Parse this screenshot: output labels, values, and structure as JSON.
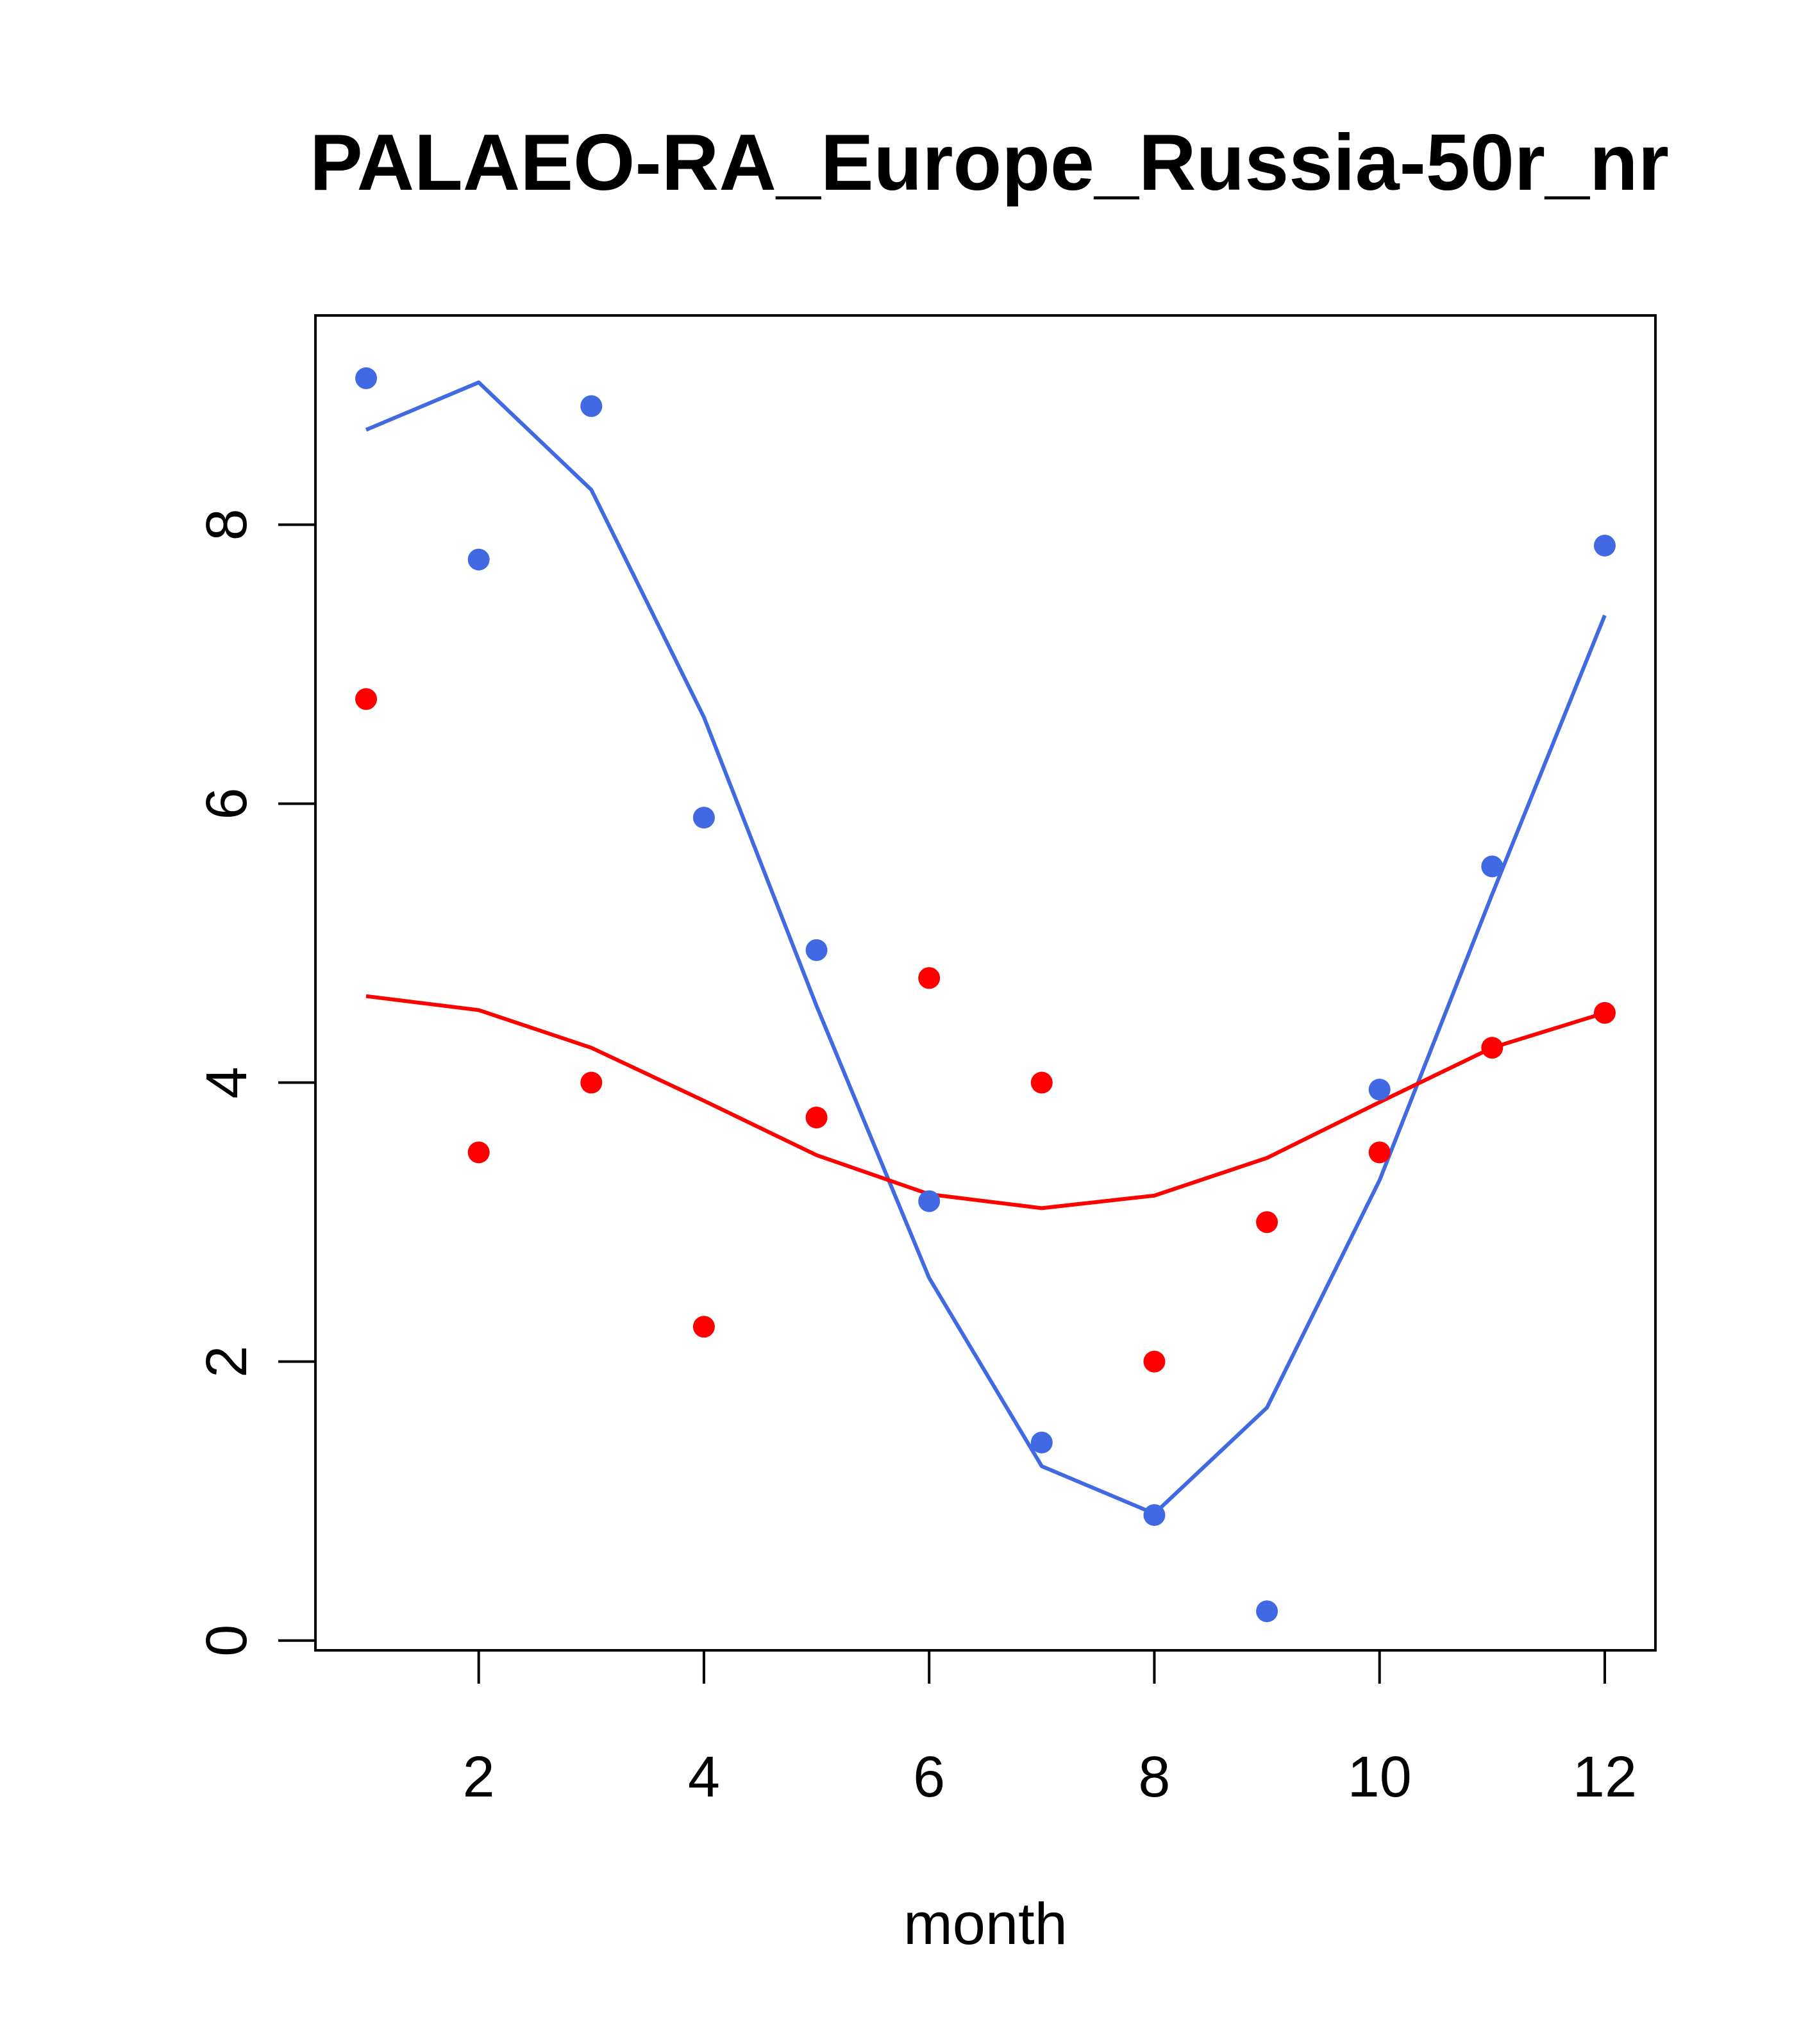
{
  "chart_data": {
    "type": "scatter",
    "title": "PALAEO-RA_Europe_Russia-50r_nr",
    "xlabel": "month",
    "ylabel": "",
    "xlim": [
      0.55,
      12.45
    ],
    "ylim": [
      -0.07,
      9.5
    ],
    "x_ticks": [
      "2",
      "4",
      "6",
      "8",
      "10",
      "12"
    ],
    "y_ticks": [
      "0",
      "2",
      "4",
      "6",
      "8"
    ],
    "grid": false,
    "legend": "none",
    "series": [
      {
        "color": "#4169E1",
        "marker": "point",
        "x": [
          1,
          2,
          3,
          4,
          5,
          6,
          7,
          8,
          9,
          10,
          11,
          12
        ],
        "y": [
          9.05,
          7.75,
          8.85,
          5.9,
          4.95,
          3.15,
          1.42,
          0.9,
          0.21,
          3.95,
          5.55,
          7.85
        ]
      },
      {
        "color": "#4169E1",
        "marker": "line",
        "x": [
          1,
          2,
          3,
          4,
          5,
          6,
          7,
          8,
          9,
          10,
          11,
          12
        ],
        "y": [
          8.68,
          9.02,
          8.25,
          6.62,
          4.55,
          2.6,
          1.25,
          0.91,
          1.67,
          3.3,
          5.35,
          7.35
        ]
      },
      {
        "color": "#FF0000",
        "marker": "point",
        "x": [
          1,
          2,
          3,
          4,
          5,
          6,
          7,
          8,
          9,
          10,
          11,
          12
        ],
        "y": [
          6.75,
          3.5,
          4.0,
          2.25,
          3.75,
          4.75,
          4.0,
          2.0,
          3.0,
          3.5,
          4.25,
          4.5
        ]
      },
      {
        "color": "#FF0000",
        "marker": "line",
        "x": [
          1,
          2,
          3,
          4,
          5,
          6,
          7,
          8,
          9,
          10,
          11,
          12
        ],
        "y": [
          4.62,
          4.52,
          4.25,
          3.87,
          3.48,
          3.2,
          3.1,
          3.19,
          3.46,
          3.86,
          4.25,
          4.5
        ]
      }
    ]
  }
}
